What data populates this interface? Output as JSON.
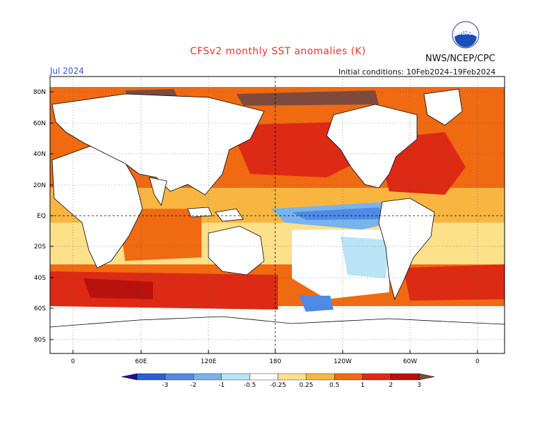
{
  "title": "CFSv2 monthly SST anomalies (K)",
  "agency": "NWS/NCEP/CPC",
  "valid_month": "Jul 2024",
  "initial_conditions": "Initial conditions: 10Feb2024–19Feb2024",
  "logo": {
    "icon": "noaa-logo-icon",
    "text": "NOAA"
  },
  "map": {
    "lat_labels": [
      "80N",
      "60N",
      "40N",
      "20N",
      "EQ",
      "20S",
      "40S",
      "60S",
      "80S"
    ],
    "lon_labels": [
      "0",
      "60E",
      "120E",
      "180",
      "120W",
      "60W",
      "0"
    ],
    "colorbar": {
      "labels": [
        "-3",
        "-2",
        "-1",
        "-0.5",
        "-0.25",
        "0.25",
        "0.5",
        "1",
        "2",
        "3"
      ],
      "colors": [
        "#2010a0",
        "#2a5fd6",
        "#4f8ae6",
        "#79b3ee",
        "#b9e4f6",
        "#ffffff",
        "#fde08a",
        "#f8b640",
        "#f06a12",
        "#dd2a14",
        "#b8120e",
        "#7e4a3e"
      ]
    }
  }
}
